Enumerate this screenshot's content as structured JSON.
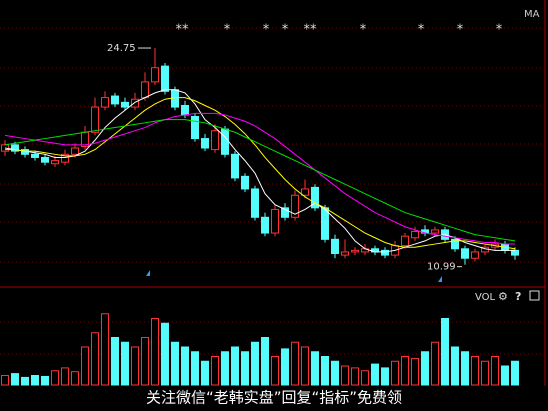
{
  "chart_data": {
    "type": "candlestick",
    "open": [
      18.2,
      18.6,
      18.3,
      18.0,
      17.8,
      17.4,
      17.5,
      18.0,
      18.5,
      19.4,
      21.0,
      21.7,
      21.3,
      21.0,
      21.6,
      22.6,
      23.6,
      22.1,
      21.1,
      20.4,
      19.0,
      18.3,
      19.6,
      18.0,
      16.6,
      15.8,
      14.0,
      13.0,
      14.6,
      14.0,
      15.4,
      15.9,
      14.6,
      12.6,
      11.6,
      11.8,
      11.8,
      12.0,
      11.9,
      11.6,
      12.2,
      12.7,
      13.2,
      13.0,
      13.2,
      12.6,
      12.0,
      11.4,
      11.8,
      12.1,
      12.3,
      11.9
    ],
    "high": [
      18.9,
      18.8,
      18.5,
      18.2,
      18.0,
      17.9,
      18.3,
      18.7,
      19.8,
      21.6,
      22.0,
      21.9,
      21.6,
      21.9,
      23.2,
      24.75,
      23.8,
      22.3,
      21.4,
      20.6,
      19.3,
      19.9,
      19.8,
      18.2,
      16.8,
      16.0,
      14.3,
      14.8,
      14.9,
      15.7,
      16.4,
      16.1,
      14.8,
      12.9,
      12.6,
      12.1,
      12.3,
      12.2,
      12.1,
      12.5,
      13.0,
      13.4,
      13.5,
      13.4,
      13.4,
      12.8,
      12.2,
      12.0,
      12.3,
      12.6,
      12.5,
      12.1
    ],
    "low": [
      17.9,
      18.0,
      17.8,
      17.6,
      17.3,
      17.2,
      17.3,
      17.8,
      18.3,
      19.2,
      20.8,
      21.0,
      20.8,
      20.8,
      21.4,
      22.4,
      21.8,
      20.8,
      20.3,
      18.8,
      18.2,
      18.1,
      17.8,
      16.3,
      15.6,
      13.8,
      12.8,
      12.8,
      13.8,
      13.8,
      15.2,
      14.4,
      12.4,
      11.4,
      11.4,
      11.6,
      11.6,
      11.6,
      11.4,
      11.4,
      12.0,
      12.5,
      12.8,
      12.8,
      12.4,
      11.8,
      10.99,
      11.2,
      11.6,
      11.9,
      11.7,
      11.3
    ],
    "close": [
      18.6,
      18.2,
      18.0,
      17.8,
      17.5,
      17.6,
      18.0,
      18.4,
      19.4,
      21.0,
      21.6,
      21.2,
      21.0,
      21.5,
      22.6,
      23.5,
      22.0,
      21.0,
      20.5,
      19.0,
      18.4,
      19.5,
      18.0,
      16.5,
      15.8,
      14.0,
      13.0,
      14.5,
      14.0,
      15.4,
      15.8,
      14.6,
      12.6,
      11.7,
      11.8,
      11.9,
      12.0,
      11.8,
      11.6,
      12.2,
      12.8,
      13.1,
      13.0,
      13.2,
      12.6,
      12.0,
      11.4,
      11.8,
      12.1,
      12.3,
      11.9,
      11.6
    ],
    "ylim": [
      9.7,
      27.8
    ],
    "up_color": "#ff3232",
    "down_color": "#54fcfc",
    "ma_label": "MA",
    "ma": [
      {
        "color": "#ffffff",
        "values": [
          18.4,
          18.3,
          18.2,
          18.1,
          18.0,
          17.8,
          17.8,
          17.9,
          18.2,
          18.9,
          19.7,
          20.3,
          20.8,
          21.3,
          21.6,
          21.9,
          22.1,
          22.1,
          21.9,
          21.2,
          20.2,
          19.7,
          19.1,
          18.3,
          17.6,
          16.8,
          15.5,
          14.8,
          14.5,
          14.2,
          14.5,
          14.9,
          14.5,
          13.9,
          13.3,
          12.5,
          12.0,
          11.8,
          11.8,
          11.9,
          12.1,
          12.3,
          12.5,
          12.8,
          12.9,
          12.7,
          12.4,
          12.2,
          12.0,
          11.9,
          11.9,
          11.9
        ]
      },
      {
        "color": "#ffff00",
        "values": [
          18.3,
          18.3,
          18.2,
          18.2,
          18.1,
          18.0,
          17.9,
          17.9,
          18.0,
          18.3,
          18.8,
          19.3,
          19.8,
          20.3,
          20.8,
          21.2,
          21.5,
          21.6,
          21.6,
          21.4,
          21.1,
          20.8,
          20.4,
          19.9,
          19.3,
          18.6,
          17.8,
          17.1,
          16.4,
          15.8,
          15.3,
          14.9,
          14.6,
          14.2,
          13.8,
          13.4,
          13.0,
          12.7,
          12.4,
          12.2,
          12.1,
          12.1,
          12.2,
          12.3,
          12.4,
          12.5,
          12.5,
          12.4,
          12.3,
          12.2,
          12.1,
          12.0
        ]
      },
      {
        "color": "#ff00ff",
        "values": [
          19.2,
          19.1,
          19.0,
          18.9,
          18.8,
          18.7,
          18.6,
          18.6,
          18.6,
          18.7,
          18.9,
          19.1,
          19.3,
          19.5,
          19.7,
          20.0,
          20.2,
          20.4,
          20.5,
          20.6,
          20.6,
          20.6,
          20.5,
          20.3,
          20.1,
          19.8,
          19.4,
          19.0,
          18.5,
          18.0,
          17.5,
          17.0,
          16.5,
          16.0,
          15.5,
          15.1,
          14.7,
          14.3,
          14.0,
          13.7,
          13.4,
          13.2,
          13.0,
          12.9,
          12.8,
          12.7,
          12.6,
          12.5,
          12.4,
          12.4,
          12.3,
          12.3
        ]
      },
      {
        "color": "#00e000",
        "values": [
          18.6,
          18.7,
          18.8,
          18.9,
          19.0,
          19.1,
          19.2,
          19.3,
          19.4,
          19.5,
          19.6,
          19.7,
          19.8,
          19.9,
          20.0,
          20.1,
          20.2,
          20.2,
          20.2,
          20.1,
          20.0,
          19.8,
          19.6,
          19.4,
          19.1,
          18.8,
          18.5,
          18.2,
          17.9,
          17.6,
          17.3,
          17.0,
          16.7,
          16.4,
          16.1,
          15.8,
          15.5,
          15.2,
          14.9,
          14.6,
          14.3,
          14.1,
          13.9,
          13.7,
          13.5,
          13.3,
          13.1,
          12.9,
          12.8,
          12.7,
          12.6,
          12.5
        ]
      }
    ],
    "volume": {
      "label": "VOL",
      "ylim": [
        0,
        100
      ],
      "values": [
        10,
        12,
        8,
        10,
        9,
        15,
        18,
        14,
        40,
        55,
        75,
        50,
        45,
        40,
        50,
        70,
        65,
        45,
        40,
        35,
        25,
        30,
        35,
        40,
        35,
        45,
        50,
        30,
        38,
        45,
        40,
        35,
        30,
        25,
        20,
        18,
        15,
        22,
        18,
        25,
        30,
        28,
        35,
        45,
        70,
        40,
        35,
        30,
        25,
        30,
        20,
        25
      ]
    },
    "high_label": 24.75,
    "low_label": 10.99,
    "stars": [
      "**",
      "*",
      "*",
      "*",
      "**",
      "*",
      "*",
      "*",
      "*"
    ]
  },
  "caption": "关注微信“老韩实盘”回复“指标”免费领"
}
